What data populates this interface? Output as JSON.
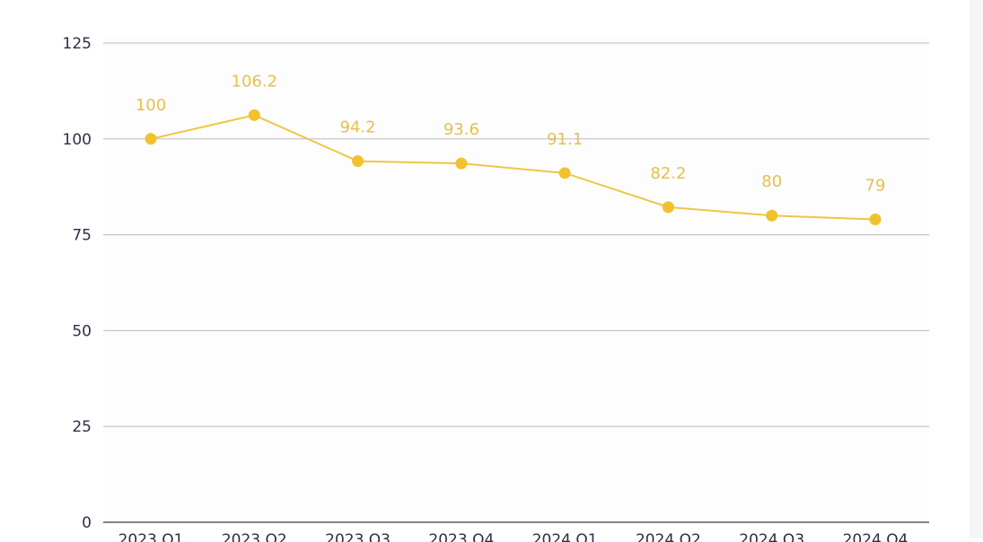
{
  "chart_data": {
    "type": "line",
    "categories": [
      "2023 Q1",
      "2023 Q2",
      "2023 Q3",
      "2023 Q4",
      "2024 Q1",
      "2024 Q2",
      "2024 Q3",
      "2024 Q4"
    ],
    "series": [
      {
        "values": [
          100,
          106.2,
          94.2,
          93.6,
          91.1,
          82.2,
          80,
          79
        ],
        "data_labels": [
          "100",
          "106.2",
          "94.2",
          "93.6",
          "91.1",
          "82.2",
          "80",
          "79"
        ],
        "color": "#f2c12e"
      }
    ],
    "yticks": [
      "0",
      "25",
      "50",
      "75",
      "100",
      "125"
    ],
    "ylim": [
      0,
      125
    ],
    "grid": true,
    "title": "",
    "xlabel": "",
    "ylabel": ""
  }
}
